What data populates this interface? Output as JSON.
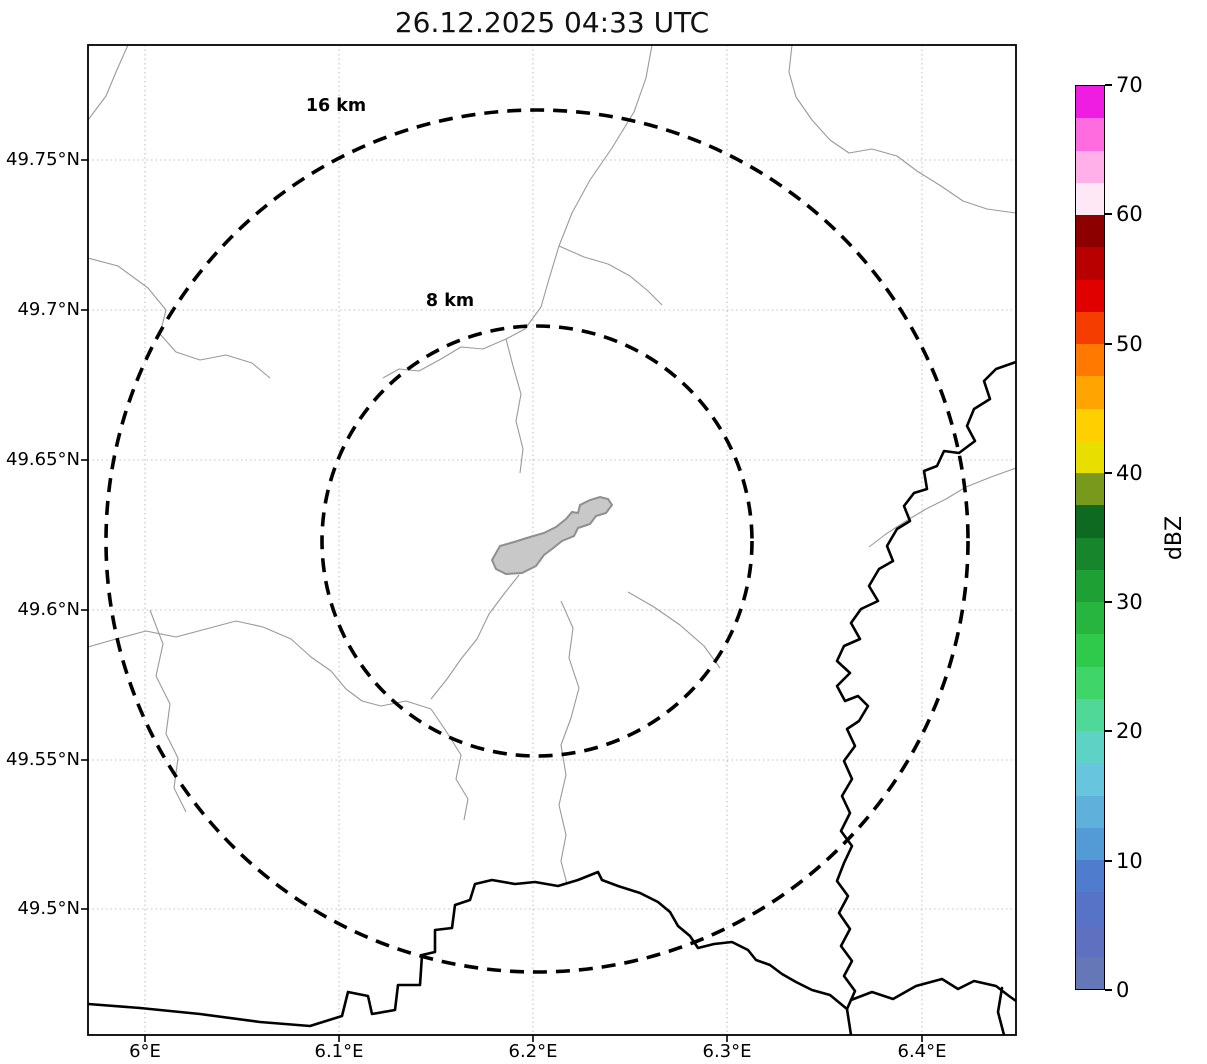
{
  "figure": {
    "title": "26.12.2025 04:33 UTC"
  },
  "map": {
    "x_tick_labels": [
      "6°E",
      "6.1°E",
      "6.2°E",
      "6.3°E",
      "6.4°E"
    ],
    "y_tick_labels": [
      "49.75°N",
      "49.7°N",
      "49.65°N",
      "49.6°N",
      "49.55°N",
      "49.5°N"
    ],
    "ring_labels": {
      "outer": "16 km",
      "inner": "8 km"
    }
  },
  "colorbar": {
    "label": "dBZ",
    "tick_labels_top_to_bottom": [
      "70",
      "60",
      "50",
      "40",
      "30",
      "20",
      "10",
      "0"
    ],
    "segment_colors_bottom_to_top": [
      "#6677b8",
      "#5e70bf",
      "#5673c7",
      "#4f7ccd",
      "#539bd6",
      "#5fb1dc",
      "#68c5de",
      "#5ed2c4",
      "#50d898",
      "#3fd569",
      "#2fc94b",
      "#27b53f",
      "#1fa035",
      "#17852b",
      "#0f6a21",
      "#78991c",
      "#e8de00",
      "#ffcf00",
      "#ffa400",
      "#ff7800",
      "#f53d00",
      "#e00000",
      "#b80000",
      "#8c0000",
      "#ffe8f6",
      "#ffb0e8",
      "#ff6ce0",
      "#ef1de2"
    ]
  },
  "chart_data": {
    "type": "heatmap",
    "title": "26.12.2025 04:33 UTC",
    "xlabel": "",
    "ylabel": "",
    "x_axis": {
      "tick_labels": [
        "6°E",
        "6.1°E",
        "6.2°E",
        "6.3°E",
        "6.4°E"
      ],
      "range_deg_east": [
        5.97,
        6.45
      ]
    },
    "y_axis": {
      "tick_labels": [
        "49.5°N",
        "49.55°N",
        "49.6°N",
        "49.65°N",
        "49.7°N",
        "49.75°N"
      ],
      "range_deg_north": [
        49.457,
        49.788
      ]
    },
    "grid": true,
    "colorbar": {
      "label": "dBZ",
      "min": 0,
      "max": 70,
      "ticks": [
        0,
        10,
        20,
        30,
        40,
        50,
        60,
        70
      ],
      "step_dbz": 2.5
    },
    "range_rings": [
      {
        "radius_km": 8,
        "label": "8 km"
      },
      {
        "radius_km": 16,
        "label": "16 km"
      }
    ],
    "ring_center": {
      "lon_deg_east": 6.2,
      "lat_deg_north": 49.62
    },
    "reflectivity_echoes": [],
    "legend_position": "none"
  }
}
